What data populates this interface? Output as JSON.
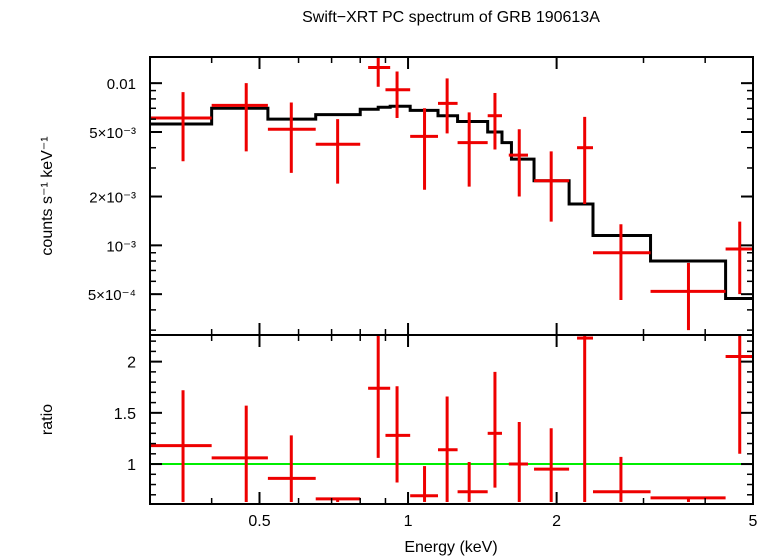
{
  "chart_data": [
    {
      "type": "scatter",
      "title": "Swift−XRT PC spectrum of GRB 190613A",
      "ylabel": "counts s⁻¹ keV⁻¹",
      "xscale": "log",
      "yscale": "log",
      "xlim": [
        0.3,
        5.0
      ],
      "ylim": [
        0.00028,
        0.0145
      ],
      "y_ticks": [
        {
          "value": 0.01,
          "label": "0.01"
        },
        {
          "value": 0.005,
          "label": "5×10⁻³"
        },
        {
          "value": 0.002,
          "label": "2×10⁻³"
        },
        {
          "value": 0.001,
          "label": "10⁻³"
        },
        {
          "value": 0.0005,
          "label": "5×10⁻⁴"
        }
      ],
      "series": [
        {
          "kind": "data",
          "color": "#ee0000",
          "points": [
            {
              "x": 0.35,
              "xlo": 0.3,
              "xhi": 0.4,
              "y": 0.0061,
              "ylo": 0.0033,
              "yhi": 0.0088
            },
            {
              "x": 0.47,
              "xlo": 0.4,
              "xhi": 0.52,
              "y": 0.0073,
              "ylo": 0.0038,
              "yhi": 0.01
            },
            {
              "x": 0.58,
              "xlo": 0.52,
              "xhi": 0.65,
              "y": 0.0052,
              "ylo": 0.0028,
              "yhi": 0.0076
            },
            {
              "x": 0.72,
              "xlo": 0.65,
              "xhi": 0.8,
              "y": 0.0042,
              "ylo": 0.0024,
              "yhi": 0.006
            },
            {
              "x": 0.87,
              "xlo": 0.83,
              "xhi": 0.92,
              "y": 0.0125,
              "ylo": 0.0095,
              "yhi": 0.0145
            },
            {
              "x": 0.95,
              "xlo": 0.9,
              "xhi": 1.01,
              "y": 0.0091,
              "ylo": 0.0061,
              "yhi": 0.0118
            },
            {
              "x": 1.08,
              "xlo": 1.01,
              "xhi": 1.15,
              "y": 0.0047,
              "ylo": 0.0022,
              "yhi": 0.007
            },
            {
              "x": 1.2,
              "xlo": 1.15,
              "xhi": 1.26,
              "y": 0.0075,
              "ylo": 0.0049,
              "yhi": 0.0107
            },
            {
              "x": 1.33,
              "xlo": 1.26,
              "xhi": 1.45,
              "y": 0.0043,
              "ylo": 0.0023,
              "yhi": 0.0066
            },
            {
              "x": 1.5,
              "xlo": 1.45,
              "xhi": 1.55,
              "y": 0.0063,
              "ylo": 0.0039,
              "yhi": 0.0087
            },
            {
              "x": 1.68,
              "xlo": 1.6,
              "xhi": 1.75,
              "y": 0.0036,
              "ylo": 0.002,
              "yhi": 0.0052
            },
            {
              "x": 1.95,
              "xlo": 1.8,
              "xhi": 2.12,
              "y": 0.0025,
              "ylo": 0.0014,
              "yhi": 0.0038
            },
            {
              "x": 2.28,
              "xlo": 2.2,
              "xhi": 2.37,
              "y": 0.004,
              "ylo": 0.0018,
              "yhi": 0.0062
            },
            {
              "x": 2.7,
              "xlo": 2.37,
              "xhi": 3.1,
              "y": 0.0009,
              "ylo": 0.00046,
              "yhi": 0.00135
            },
            {
              "x": 3.7,
              "xlo": 3.1,
              "xhi": 4.4,
              "y": 0.00052,
              "ylo": 0.0003,
              "yhi": 0.00078
            },
            {
              "x": 4.7,
              "xlo": 4.4,
              "xhi": 5.0,
              "y": 0.00095,
              "ylo": 0.0005,
              "yhi": 0.0014
            }
          ]
        },
        {
          "kind": "model",
          "color": "#000000",
          "edges": [
            0.3,
            0.4,
            0.52,
            0.65,
            0.8,
            0.87,
            0.92,
            1.01,
            1.15,
            1.26,
            1.45,
            1.55,
            1.62,
            1.8,
            2.12,
            2.37,
            3.1,
            4.4,
            5.0
          ],
          "values": [
            0.0056,
            0.007,
            0.006,
            0.0064,
            0.0069,
            0.0071,
            0.0072,
            0.0068,
            0.0063,
            0.0058,
            0.005,
            0.0043,
            0.0034,
            0.0025,
            0.0018,
            0.00115,
            0.0008,
            0.00047
          ]
        }
      ]
    },
    {
      "type": "scatter",
      "xlabel": "Energy (keV)",
      "ylabel": "ratio",
      "xscale": "log",
      "xlim": [
        0.3,
        5.0
      ],
      "ylim": [
        0.61,
        2.26
      ],
      "x_ticks": [
        {
          "value": 0.5,
          "label": "0.5"
        },
        {
          "value": 1,
          "label": "1"
        },
        {
          "value": 2,
          "label": "2"
        },
        {
          "value": 5,
          "label": "5"
        }
      ],
      "y_ticks": [
        {
          "value": 1,
          "label": "1"
        },
        {
          "value": 1.5,
          "label": "1.5"
        },
        {
          "value": 2,
          "label": "2"
        }
      ],
      "reference_line": {
        "y": 1,
        "color": "#00ee00"
      },
      "series": [
        {
          "kind": "data",
          "color": "#ee0000",
          "points": [
            {
              "x": 0.35,
              "xlo": 0.3,
              "xhi": 0.4,
              "y": 1.18,
              "ylo": 0.63,
              "yhi": 1.72
            },
            {
              "x": 0.47,
              "xlo": 0.4,
              "xhi": 0.52,
              "y": 1.06,
              "ylo": 0.63,
              "yhi": 1.57
            },
            {
              "x": 0.58,
              "xlo": 0.52,
              "xhi": 0.65,
              "y": 0.86,
              "ylo": 0.63,
              "yhi": 1.28
            },
            {
              "x": 0.72,
              "xlo": 0.65,
              "xhi": 0.8,
              "y": 0.66,
              "ylo": 0.63,
              "yhi": 0.66
            },
            {
              "x": 0.87,
              "xlo": 0.83,
              "xhi": 0.92,
              "y": 1.74,
              "ylo": 1.06,
              "yhi": 2.26
            },
            {
              "x": 0.95,
              "xlo": 0.9,
              "xhi": 1.01,
              "y": 1.28,
              "ylo": 0.82,
              "yhi": 1.76
            },
            {
              "x": 1.08,
              "xlo": 1.01,
              "xhi": 1.15,
              "y": 0.69,
              "ylo": 0.63,
              "yhi": 0.98
            },
            {
              "x": 1.2,
              "xlo": 1.15,
              "xhi": 1.26,
              "y": 1.14,
              "ylo": 0.63,
              "yhi": 1.66
            },
            {
              "x": 1.33,
              "xlo": 1.26,
              "xhi": 1.45,
              "y": 0.73,
              "ylo": 0.63,
              "yhi": 1.02
            },
            {
              "x": 1.5,
              "xlo": 1.45,
              "xhi": 1.55,
              "y": 1.3,
              "ylo": 0.77,
              "yhi": 1.9
            },
            {
              "x": 1.68,
              "xlo": 1.6,
              "xhi": 1.75,
              "y": 1.0,
              "ylo": 0.63,
              "yhi": 1.41
            },
            {
              "x": 1.95,
              "xlo": 1.8,
              "xhi": 2.12,
              "y": 0.95,
              "ylo": 0.63,
              "yhi": 1.35
            },
            {
              "x": 2.28,
              "xlo": 2.2,
              "xhi": 2.37,
              "y": 2.23,
              "ylo": 0.63,
              "yhi": 2.26
            },
            {
              "x": 2.7,
              "xlo": 2.37,
              "xhi": 3.1,
              "y": 0.73,
              "ylo": 0.63,
              "yhi": 1.07
            },
            {
              "x": 3.7,
              "xlo": 3.1,
              "xhi": 4.4,
              "y": 0.67,
              "ylo": 0.63,
              "yhi": 0.67
            },
            {
              "x": 4.7,
              "xlo": 4.4,
              "xhi": 5.0,
              "y": 2.05,
              "ylo": 1.1,
              "yhi": 2.26
            }
          ]
        }
      ]
    }
  ]
}
